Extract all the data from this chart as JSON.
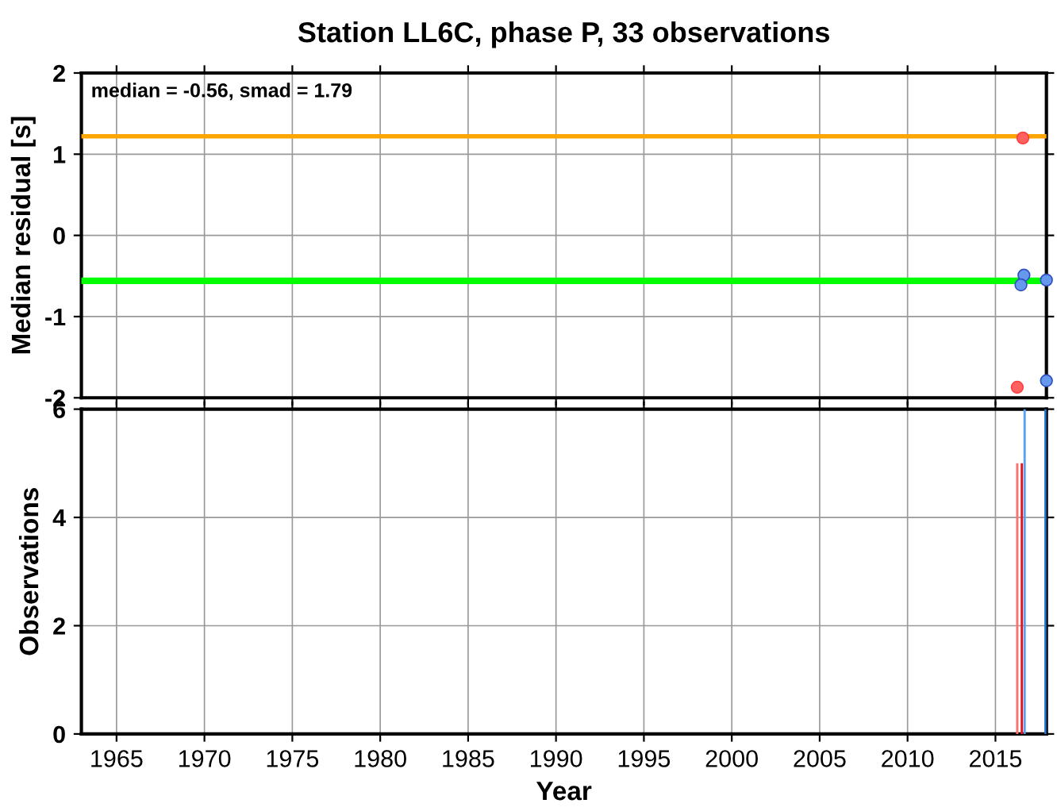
{
  "chart_data": [
    {
      "type": "scatter",
      "title": "Station LL6C, phase P, 33 observations",
      "ylabel": "Median residual [s]",
      "xlim": [
        1963,
        2017.9
      ],
      "xticks": [
        1965,
        1970,
        1975,
        1980,
        1985,
        1990,
        1995,
        2000,
        2005,
        2010,
        2015
      ],
      "ylim": [
        -2,
        2
      ],
      "yticks": [
        -2,
        -1,
        0,
        1,
        2
      ],
      "tick_labels": "y",
      "grid": true,
      "marker": "circle",
      "annotations": [
        "median = -0.56, smad = 1.79"
      ],
      "ref_lines": [
        {
          "axis": "y",
          "value": 1.22,
          "color": "#ffa500"
        },
        {
          "axis": "y",
          "value": -0.56,
          "color": "#00ff00"
        }
      ],
      "series": [
        {
          "color": "#ff6060",
          "x": [
            2016.56,
            2016.24
          ],
          "values": [
            1.2,
            -1.87
          ]
        },
        {
          "color": "#6699ee",
          "x": [
            2016.62,
            2016.45,
            2017.9,
            2017.9
          ],
          "values": [
            -0.49,
            -0.61,
            -0.55,
            -1.79
          ]
        }
      ]
    },
    {
      "type": "bar",
      "xlabel": "Year",
      "ylabel": "Observations",
      "xlim": [
        1963,
        2017.9
      ],
      "xticks": [
        1965,
        1970,
        1975,
        1980,
        1985,
        1990,
        1995,
        2000,
        2005,
        2010,
        2015
      ],
      "ylim": [
        0,
        6
      ],
      "yticks": [
        0,
        2,
        4,
        6
      ],
      "grid": true,
      "series": [
        {
          "color": "#ff7070",
          "x": [
            2016.24
          ],
          "values": [
            5
          ]
        },
        {
          "color": "#5aa0f0",
          "x": [
            2016.66
          ],
          "values": [
            6
          ]
        },
        {
          "color": "#e8141c",
          "x": [
            2016.5
          ],
          "values": [
            5
          ]
        },
        {
          "color": "#1f78d8",
          "x": [
            2017.85
          ],
          "values": [
            6
          ]
        }
      ]
    }
  ]
}
